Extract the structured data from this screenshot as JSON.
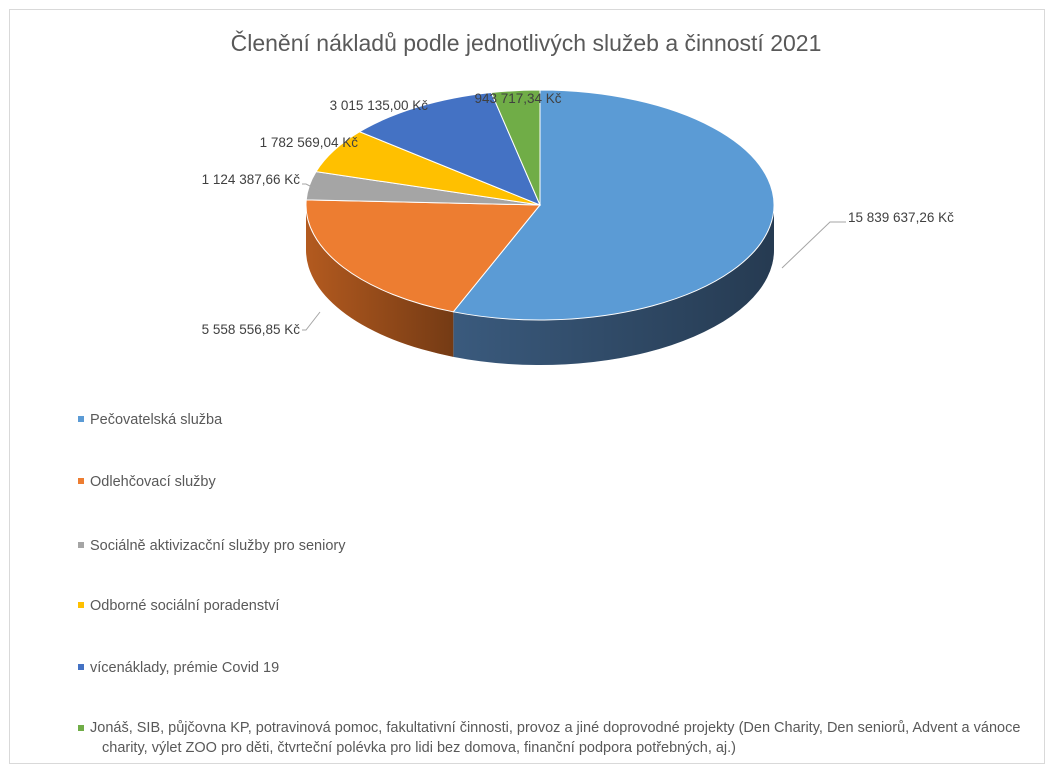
{
  "chart_data": {
    "type": "pie",
    "title": "Členění nákladů podle jednotlivých služeb a činností 2021",
    "legend_position": "bottom",
    "slices": [
      {
        "name": "Pečovatelská služba",
        "value": 15839637.26,
        "label": "15 839 637,26 Kč",
        "color": "#5b9bd5",
        "side_color": "#3a5a7d"
      },
      {
        "name": "Odlehčovací služby",
        "value": 5558556.85,
        "label": "5 558 556,85 Kč",
        "color": "#ed7d31",
        "side_color": "#b35a1f"
      },
      {
        "name": "Sociálně aktivizacční služby pro seniory",
        "value": 1124387.66,
        "label": "1 124 387,66 Kč",
        "color": "#a5a5a5",
        "side_color": "#7a7a7a"
      },
      {
        "name": "Odborné sociální poradenství",
        "value": 1782569.04,
        "label": "1 782 569,04 Kč",
        "color": "#ffc000",
        "side_color": "#c08f00"
      },
      {
        "name": "vícenáklady, prémie Covid 19",
        "value": 3015135.0,
        "label": "3 015 135,00 Kč",
        "color": "#4472c4",
        "side_color": "#2f5090"
      },
      {
        "name": "Jonáš, SIB, půjčovna KP, potravinová pomoc, fakultativní činnosti, provoz a jiné doprovodné projekty (Den Charity, Den seniorů, Advent a vánoce charity, výlet ZOO pro děti, čtvrteční polévka pro lidi bez domova, finanční podpora potřebných, aj.)",
        "value": 943717.34,
        "label": "943 717,34 Kč",
        "color": "#70ad47",
        "side_color": "#4e7d31"
      }
    ]
  }
}
